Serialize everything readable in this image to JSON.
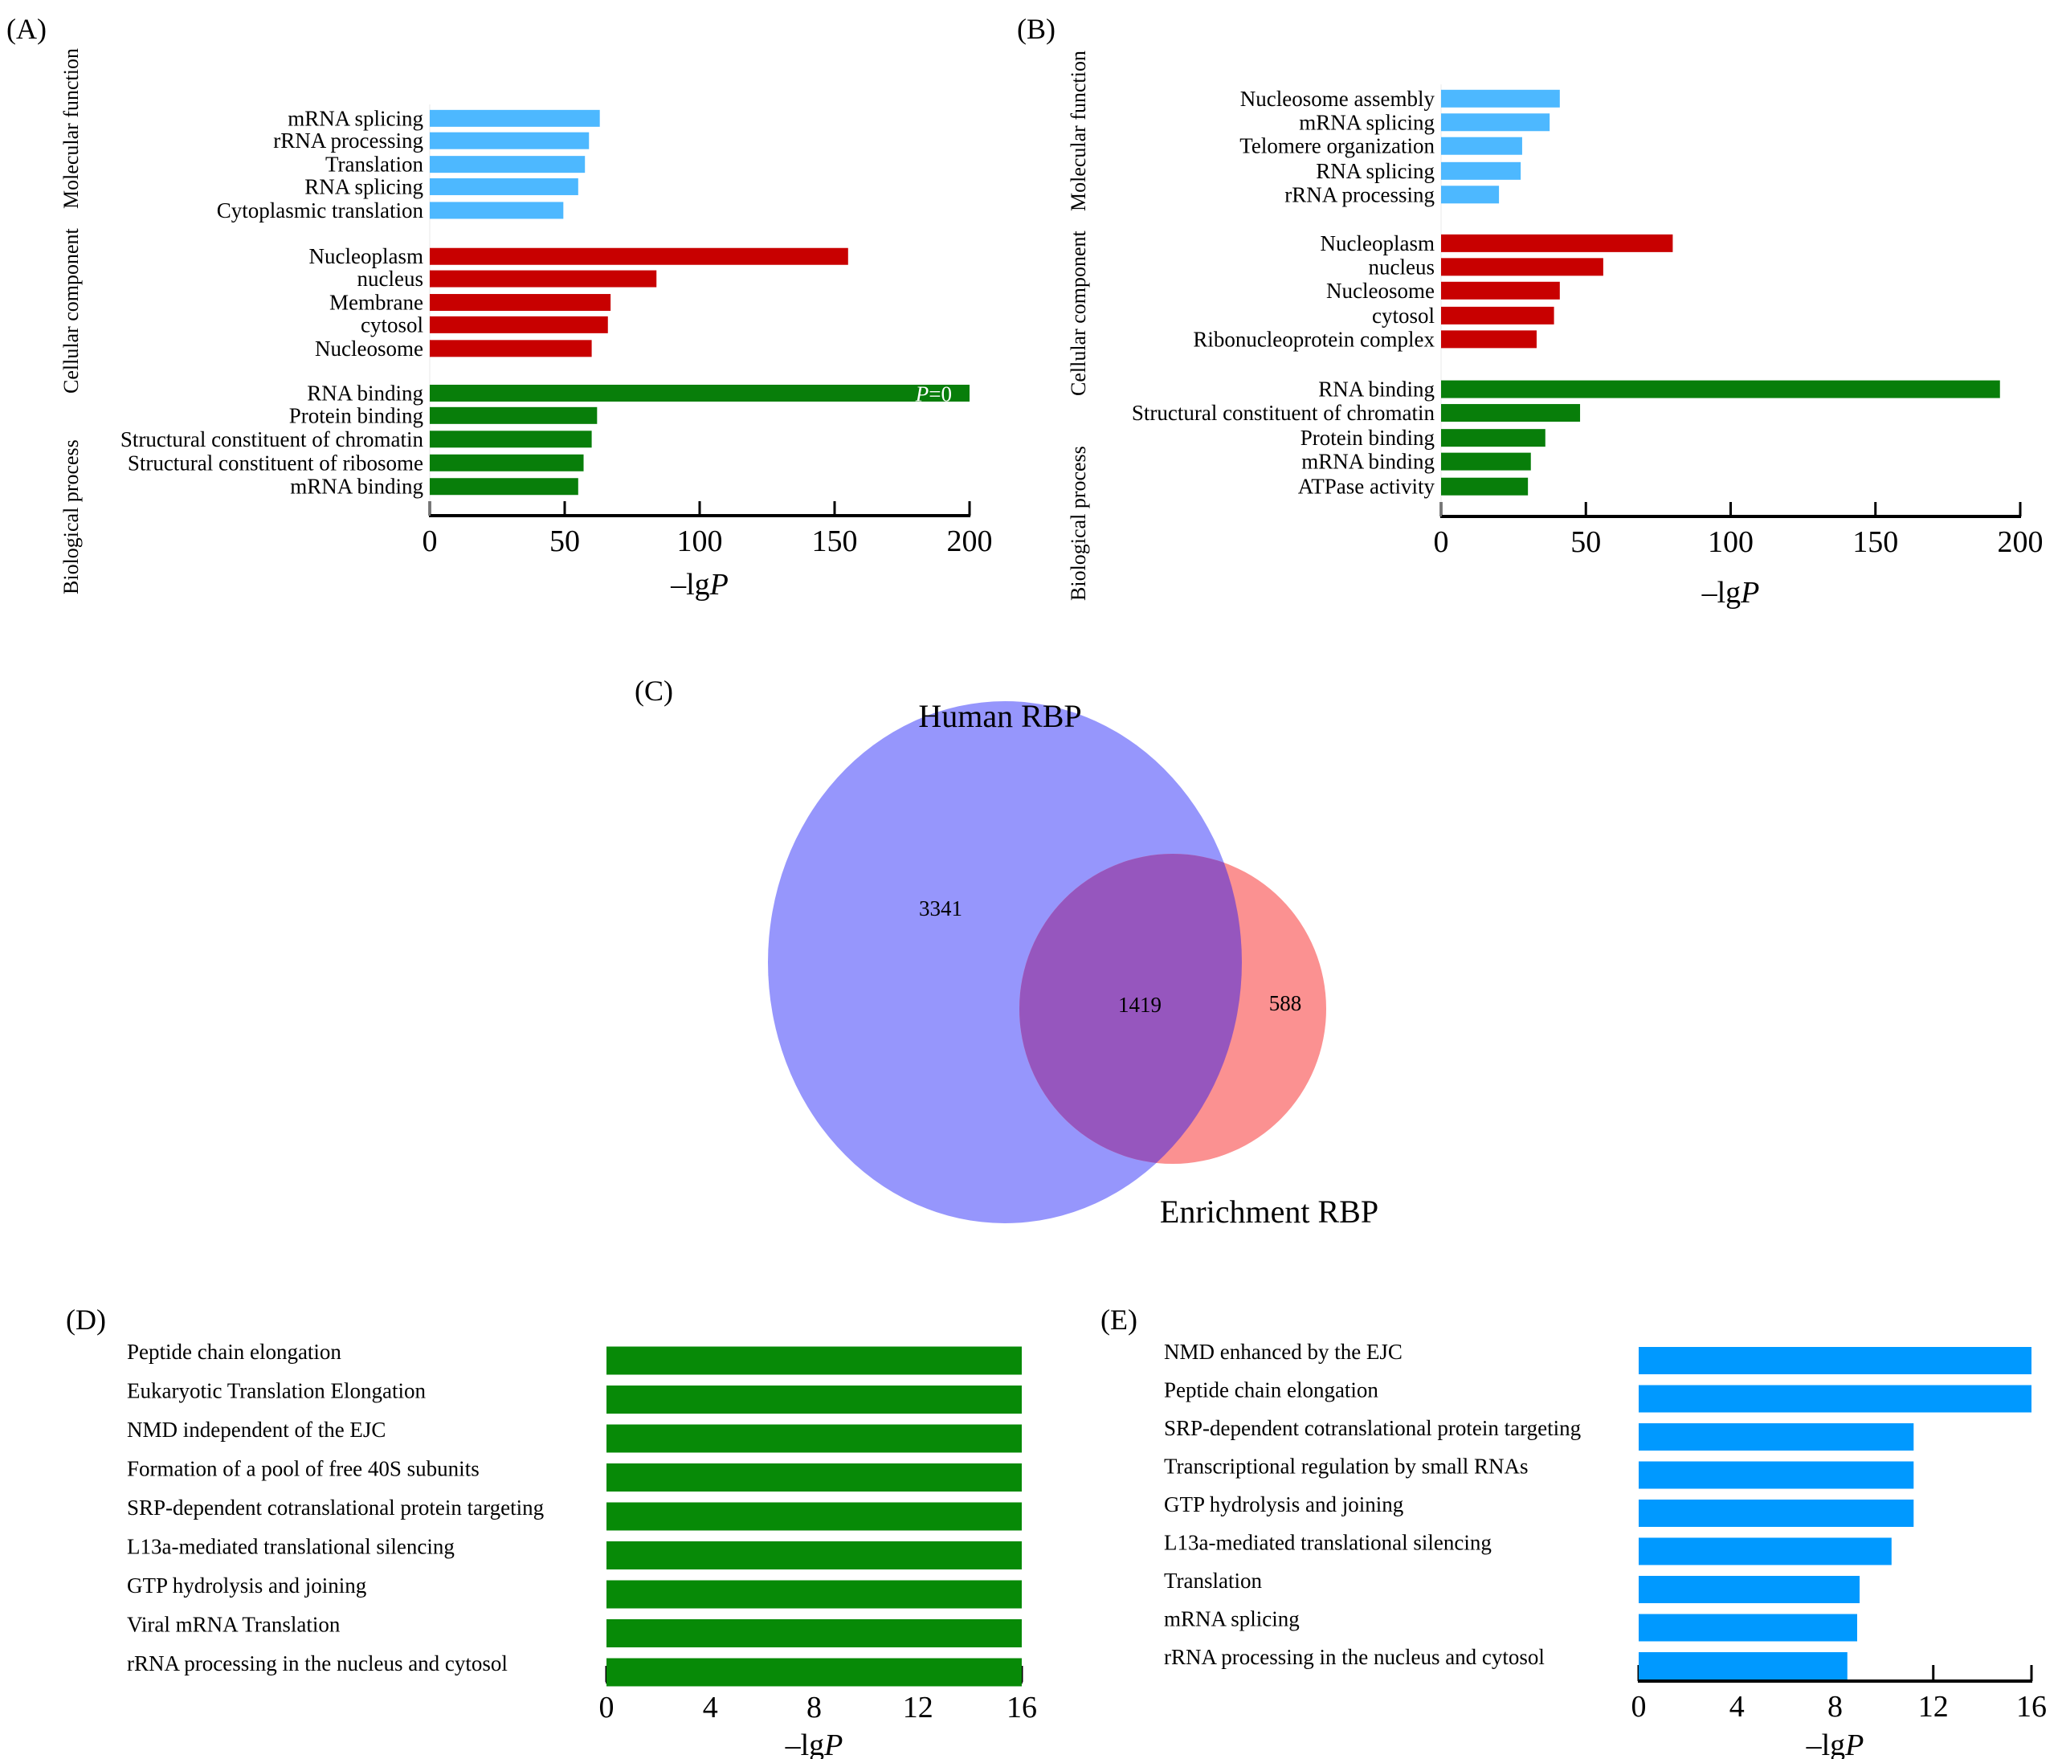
{
  "chart_data": [
    {
      "id": "A",
      "type": "bar",
      "orientation": "horizontal",
      "panel_label": "(A)",
      "xlabel_prefix": "–lg",
      "xlabel_italic": "P",
      "xlim": [
        0,
        200
      ],
      "xticks": [
        0,
        50,
        100,
        150,
        200
      ],
      "groups": [
        {
          "name": "Biological process",
          "color": "#4db8ff",
          "categories": [
            "mRNA splicing",
            "rRNA processing",
            "Translation",
            "RNA splicing",
            "Cytoplasmic translation"
          ],
          "values": [
            63,
            59,
            57.5,
            55,
            49.5
          ]
        },
        {
          "name": "Cellular component",
          "color": "#c80000",
          "categories": [
            "Nucleoplasm",
            "nucleus",
            "Membrane",
            "cytosol",
            "Nucleosome"
          ],
          "values": [
            155,
            84,
            67,
            66,
            60
          ]
        },
        {
          "name": "Molecular function",
          "color": "#087e0a",
          "categories": [
            "RNA binding",
            "Protein binding",
            "Structural constituent of chromatin",
            "Structural constituent of ribosome",
            "mRNA binding"
          ],
          "values": [
            200,
            62,
            60,
            57,
            55
          ]
        }
      ],
      "annotations": [
        {
          "group": 2,
          "index": 0,
          "text_italic": "P",
          "text": "=0"
        }
      ]
    },
    {
      "id": "B",
      "type": "bar",
      "orientation": "horizontal",
      "panel_label": "(B)",
      "xlabel_prefix": "–lg",
      "xlabel_italic": "P",
      "xlim": [
        0,
        200
      ],
      "xticks": [
        0,
        50,
        100,
        150,
        200
      ],
      "groups": [
        {
          "name": "Biological process",
          "color": "#4db8ff",
          "categories": [
            "Nucleosome assembly",
            "mRNA splicing",
            "Telomere organization",
            "RNA splicing",
            "rRNA processing"
          ],
          "values": [
            41,
            37.5,
            28,
            27.5,
            20
          ]
        },
        {
          "name": "Cellular component",
          "color": "#c80000",
          "categories": [
            "Nucleoplasm",
            "nucleus",
            "Nucleosome",
            "cytosol",
            "Ribonucleoprotein complex"
          ],
          "values": [
            80,
            56,
            41,
            39,
            33
          ]
        },
        {
          "name": "Molecular function",
          "color": "#087e0a",
          "categories": [
            "RNA binding",
            "Structural constituent of chromatin",
            "Protein binding",
            "mRNA binding",
            "ATPase activity"
          ],
          "values": [
            193,
            48,
            36,
            31,
            30
          ]
        }
      ],
      "annotations": []
    },
    {
      "id": "C",
      "type": "venn",
      "panel_label": "(C)",
      "sets": [
        {
          "name": "Human RBP",
          "only": 3341,
          "color": "#9696fc"
        },
        {
          "name": "Enrichment RBP",
          "only": 588,
          "color": "#fb9191"
        }
      ],
      "intersection": 1419,
      "intersection_color": "#9656be"
    },
    {
      "id": "D",
      "type": "bar",
      "orientation": "horizontal",
      "panel_label": "(D)",
      "xlabel_prefix": "–lg",
      "xlabel_italic": "P",
      "xlim": [
        0,
        16
      ],
      "xticks": [
        0,
        4,
        8,
        12,
        16
      ],
      "color": "#078a07",
      "categories": [
        "Peptide chain elongation",
        "Eukaryotic Translation Elongation",
        "NMD independent of the EJC",
        "Formation of a pool of free 40S subunits",
        "SRP-dependent cotranslational protein targeting",
        "L13a-mediated translational silencing",
        "GTP hydrolysis and joining",
        "Viral mRNA Translation",
        "rRNA processing in the nucleus and cytosol"
      ],
      "values": [
        16,
        16,
        16,
        16,
        16,
        16,
        16,
        16,
        16
      ]
    },
    {
      "id": "E",
      "type": "bar",
      "orientation": "horizontal",
      "panel_label": "(E)",
      "xlabel_prefix": "–lg",
      "xlabel_italic": "P",
      "xlim": [
        0,
        16
      ],
      "xticks": [
        0,
        4,
        8,
        12,
        16
      ],
      "color": "#0099ff",
      "categories": [
        "NMD enhanced by the EJC",
        "Peptide chain elongation",
        "SRP-dependent cotranslational protein targeting",
        "Transcriptional regulation by small RNAs",
        "GTP hydrolysis and joining",
        "L13a-mediated translational silencing",
        "Translation",
        "mRNA splicing",
        "rRNA processing in the nucleus and cytosol"
      ],
      "values": [
        16,
        16,
        11.2,
        11.2,
        11.2,
        10.3,
        9.0,
        8.9,
        8.5
      ]
    }
  ]
}
